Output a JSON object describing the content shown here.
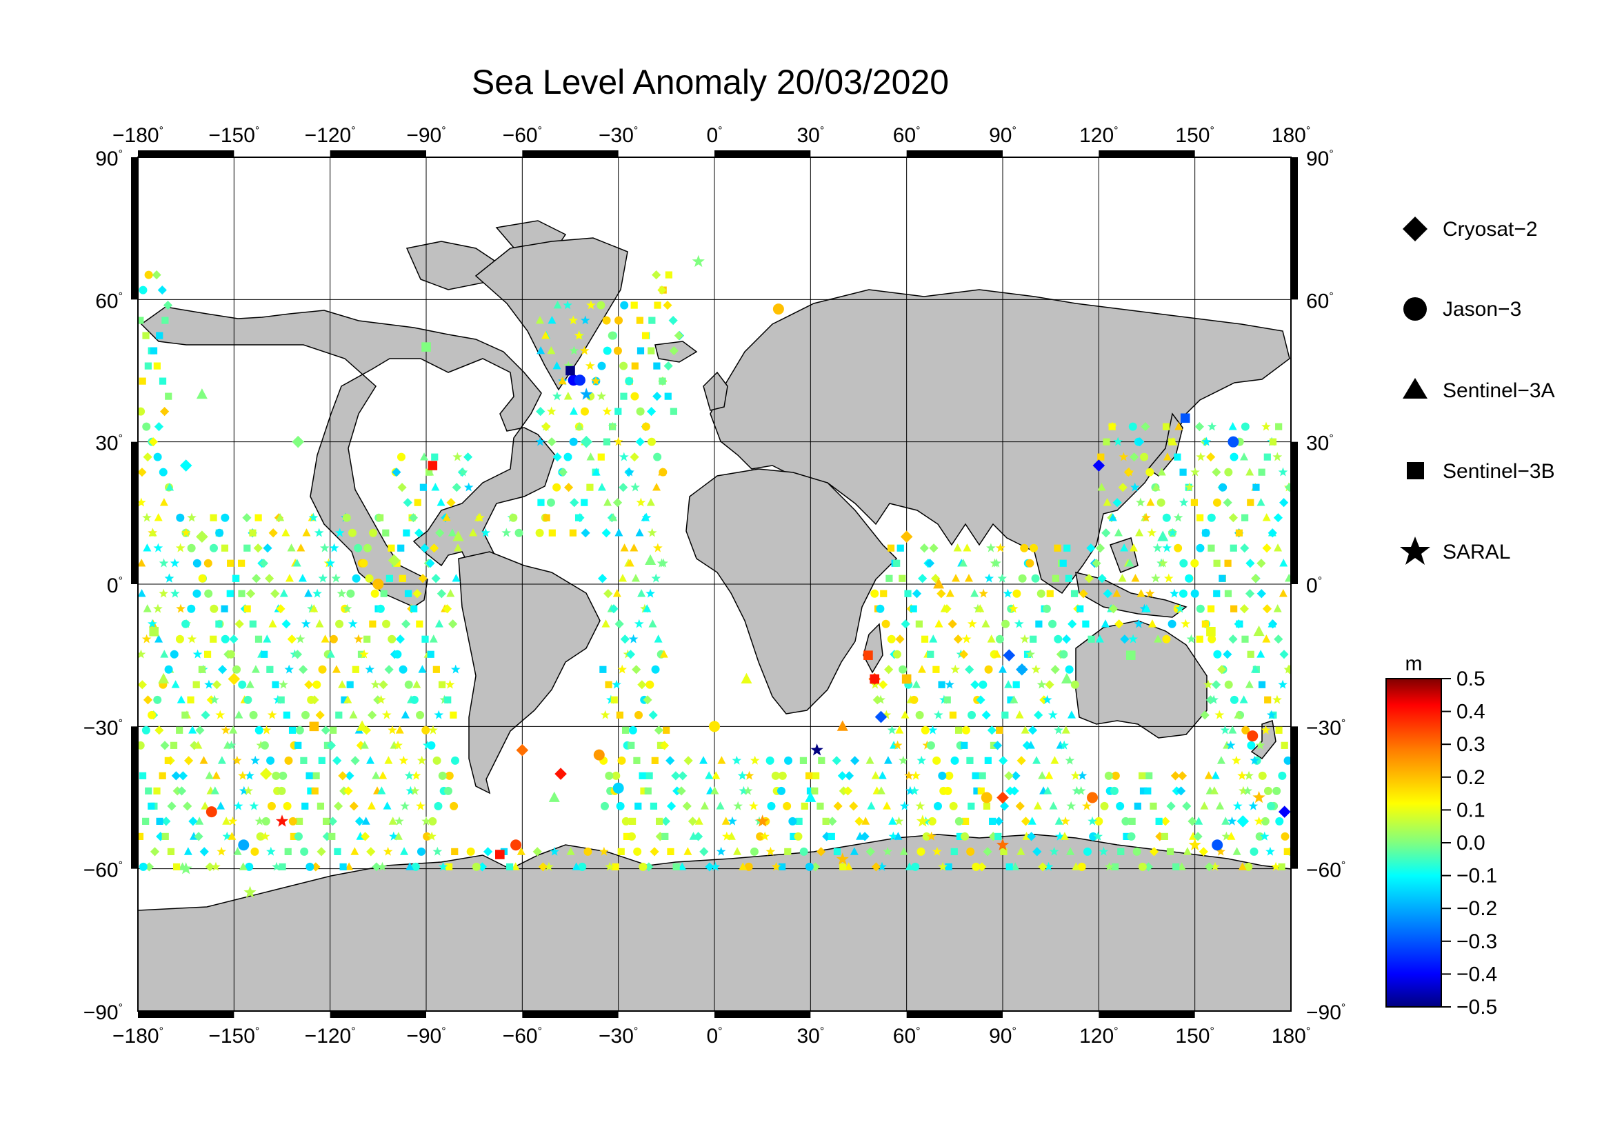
{
  "title": "Sea Level Anomaly 20/03/2020",
  "map": {
    "projection": "equirectangular",
    "lon_range": [
      -180,
      180
    ],
    "lat_range": [
      -90,
      90
    ],
    "lon_ticks": [
      "−180",
      "−150",
      "−120",
      "−90",
      "−60",
      "−30",
      "0",
      "30",
      "60",
      "90",
      "120",
      "150",
      "180"
    ],
    "lat_ticks_left": [
      "90",
      "60",
      "30",
      "0",
      "−30",
      "−60",
      "−90"
    ],
    "lat_ticks_right": [
      "90",
      "60",
      "30",
      "0",
      "−30",
      "−60",
      "−90"
    ],
    "degree_symbol": "°",
    "land_color": "#c0c0c0",
    "ocean_color": "#ffffff",
    "grid": true
  },
  "legend": {
    "placement": "right",
    "entries": [
      {
        "label": "Cryosat−2",
        "icon": "diamond-icon"
      },
      {
        "label": "Jason−3",
        "icon": "circle-icon"
      },
      {
        "label": "Sentinel−3A",
        "icon": "triangle-icon"
      },
      {
        "label": "Sentinel−3B",
        "icon": "square-icon"
      },
      {
        "label": "SARAL",
        "icon": "star-icon"
      }
    ]
  },
  "colorbar": {
    "unit": "m",
    "min": -0.5,
    "max": 0.5,
    "tick_labels": [
      "0.5",
      "0.4",
      "0.3",
      "0.2",
      "0.1",
      "0.0",
      "−0.1",
      "−0.2",
      "−0.3",
      "−0.4",
      "−0.5"
    ],
    "colors": [
      "#000080",
      "#0000ff",
      "#0080ff",
      "#00ffff",
      "#80ff80",
      "#ffff00",
      "#ff8000",
      "#ff0000",
      "#800000"
    ]
  },
  "chart_data": {
    "type": "scatter",
    "x_axis": "longitude",
    "y_axis": "latitude",
    "value_unit": "m",
    "value_range": [
      -0.5,
      0.5
    ],
    "series": [
      {
        "name": "Cryosat−2",
        "marker": "diamond",
        "points": [
          [
            -165,
            25,
            -0.1
          ],
          [
            -160,
            10,
            0.05
          ],
          [
            -150,
            -20,
            0.15
          ],
          [
            -140,
            -40,
            0.1
          ],
          [
            -130,
            30,
            0.0
          ],
          [
            -100,
            5,
            0.05
          ],
          [
            -60,
            -35,
            0.3
          ],
          [
            -48,
            -40,
            0.4
          ],
          [
            -40,
            30,
            -0.05
          ],
          [
            50,
            -20,
            0.3
          ],
          [
            52,
            -28,
            -0.3
          ],
          [
            92,
            -15,
            -0.3
          ],
          [
            96,
            -18,
            -0.2
          ],
          [
            120,
            25,
            -0.4
          ],
          [
            165,
            -50,
            -0.1
          ],
          [
            178,
            -48,
            -0.4
          ],
          [
            90,
            -45,
            0.35
          ],
          [
            60,
            10,
            0.2
          ]
        ]
      },
      {
        "name": "Jason−3",
        "marker": "circle",
        "points": [
          [
            -157,
            -48,
            0.35
          ],
          [
            -147,
            -55,
            -0.2
          ],
          [
            -62,
            -55,
            0.35
          ],
          [
            -44,
            43,
            -0.4
          ],
          [
            -42,
            43,
            -0.35
          ],
          [
            -36,
            -36,
            0.25
          ],
          [
            -30,
            -43,
            -0.15
          ],
          [
            20,
            58,
            0.2
          ],
          [
            157,
            -55,
            -0.3
          ],
          [
            162,
            30,
            -0.3
          ],
          [
            168,
            -32,
            0.35
          ],
          [
            85,
            -45,
            0.2
          ],
          [
            118,
            -45,
            0.3
          ],
          [
            -105,
            0,
            0.2
          ],
          [
            0,
            -30,
            0.15
          ]
        ]
      },
      {
        "name": "Sentinel−3A",
        "marker": "triangle",
        "points": [
          [
            -172,
            -20,
            0.05
          ],
          [
            -160,
            40,
            0.0
          ],
          [
            -110,
            -30,
            0.1
          ],
          [
            -80,
            10,
            0.05
          ],
          [
            -50,
            -45,
            0.0
          ],
          [
            -20,
            5,
            0.0
          ],
          [
            10,
            -20,
            0.1
          ],
          [
            40,
            -30,
            0.25
          ],
          [
            70,
            0,
            0.2
          ],
          [
            110,
            -20,
            0.0
          ],
          [
            140,
            10,
            -0.05
          ],
          [
            170,
            -10,
            0.05
          ],
          [
            30,
            -45,
            -0.1
          ]
        ]
      },
      {
        "name": "Sentinel−3B",
        "marker": "square",
        "points": [
          [
            -175,
            -10,
            0.05
          ],
          [
            -125,
            -30,
            0.2
          ],
          [
            -90,
            50,
            0.0
          ],
          [
            -88,
            25,
            0.4
          ],
          [
            -67,
            -57,
            0.4
          ],
          [
            -45,
            45,
            -0.5
          ],
          [
            48,
            -15,
            0.35
          ],
          [
            50,
            -20,
            0.4
          ],
          [
            60,
            -20,
            0.2
          ],
          [
            130,
            -15,
            0.0
          ],
          [
            147,
            35,
            -0.3
          ],
          [
            155,
            -10,
            0.1
          ]
        ]
      },
      {
        "name": "SARAL",
        "marker": "star",
        "points": [
          [
            -165,
            -60,
            0.0
          ],
          [
            -145,
            -65,
            0.05
          ],
          [
            -135,
            -50,
            0.4
          ],
          [
            -40,
            40,
            -0.2
          ],
          [
            -5,
            68,
            0.0
          ],
          [
            15,
            -50,
            0.25
          ],
          [
            32,
            -35,
            -0.5
          ],
          [
            40,
            -58,
            0.2
          ],
          [
            65,
            -50,
            0.1
          ],
          [
            90,
            -55,
            0.3
          ],
          [
            150,
            -55,
            0.15
          ],
          [
            170,
            -45,
            0.2
          ]
        ]
      }
    ]
  }
}
